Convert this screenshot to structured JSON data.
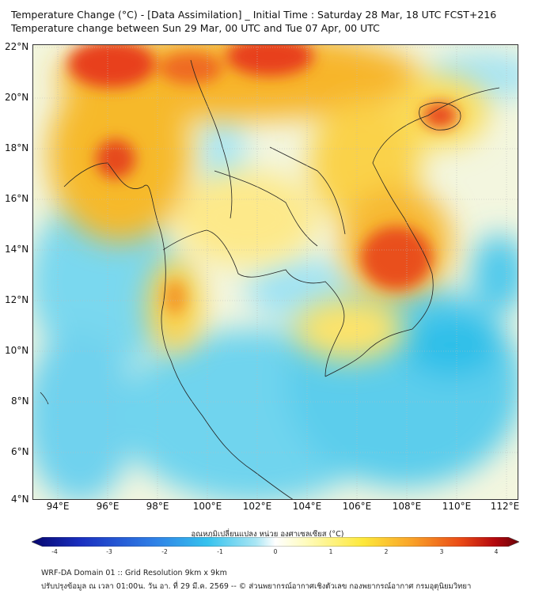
{
  "title": {
    "line1": "Temperature Change (°C) - [Data Assimilation] _ Initial Time : Saturday 28 Mar, 18 UTC FCST+216",
    "line2": "Temperature change between Sun 29 Mar, 00 UTC and Tue 07 Apr, 00 UTC"
  },
  "axes": {
    "lat_labels": [
      "22°N",
      "20°N",
      "18°N",
      "16°N",
      "14°N",
      "12°N",
      "10°N",
      "8°N",
      "6°N",
      "4°N"
    ],
    "lon_labels": [
      "94°E",
      "96°E",
      "98°E",
      "100°E",
      "102°E",
      "104°E",
      "106°E",
      "108°E",
      "110°E",
      "112°E"
    ]
  },
  "colorbar": {
    "title": "อุณหภูมิเปลี่ยนแปลง หน่วย องศาเซลเซียส (°C)",
    "ticks": [
      "-4",
      "-3",
      "-2",
      "-1",
      "0",
      "1",
      "2",
      "3",
      "4"
    ],
    "colors": [
      "#06066e",
      "#1a2fc0",
      "#2f7fe6",
      "#35c2ee",
      "#a9e6f4",
      "#ffffff",
      "#fffcc0",
      "#fde83a",
      "#f9a228",
      "#ea4a16",
      "#b4080e",
      "#6a0208"
    ]
  },
  "footer": {
    "line1": "WRF-DA Domain 01 :: Grid Resolution 9km x 9km",
    "line2": "ปรับปรุงข้อมูล ณ เวลา 01:00น. วัน อา. ที่ 29 มี.ค. 2569 -- © ส่วนพยากรณ์อากาศเชิงตัวเลข กองพยากรณ์อากาศ กรมอุตุนิยมวิทยา"
  }
}
